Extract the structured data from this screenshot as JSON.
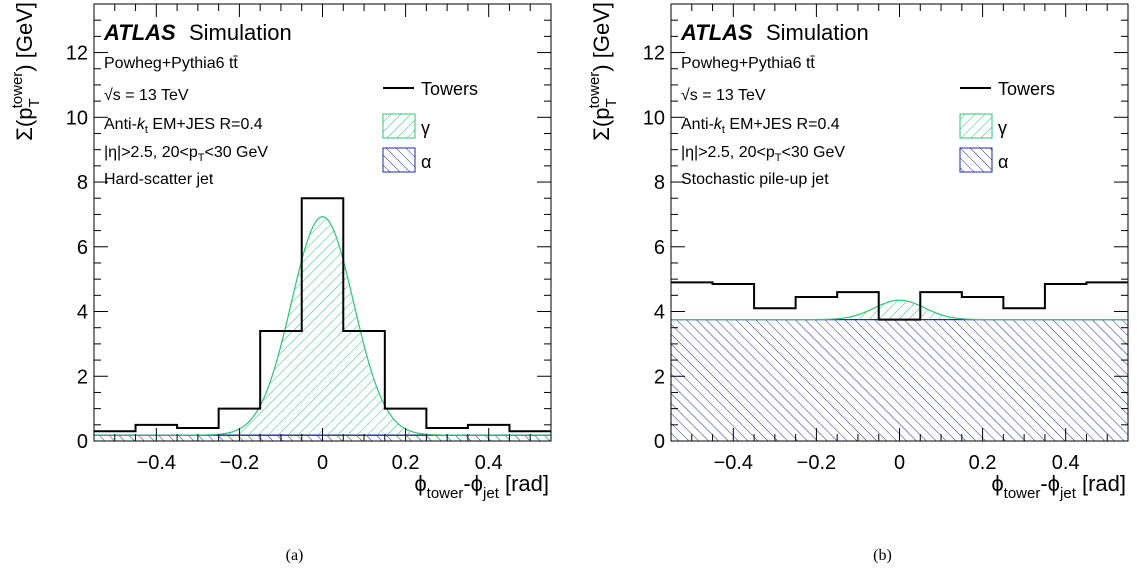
{
  "chart_data": [
    {
      "type": "histogram",
      "caption": "(a)",
      "experiment": "ATLAS",
      "status": "Simulation",
      "annotations": [
        "Powheg+Pythia6 tt̄",
        "√s = 13 TeV",
        "Anti-kt EM+JES R=0.4",
        "|η|>2.5, 20<pT<30 GeV",
        "Hard-scatter jet"
      ],
      "xlabel": "ϕtower-ϕjet [rad]",
      "ylabel": "Σ(pTtower) [GeV]",
      "xlim": [
        -0.55,
        0.55
      ],
      "ylim": [
        0,
        13.5
      ],
      "xticks": [
        -0.4,
        -0.2,
        0,
        0.2,
        0.4
      ],
      "yticks": [
        0,
        2,
        4,
        6,
        8,
        10,
        12
      ],
      "legend": [
        "Towers",
        "γ",
        "α"
      ],
      "towers": {
        "bin_edges": [
          -0.55,
          -0.45,
          -0.35,
          -0.25,
          -0.15,
          -0.05,
          0.05,
          0.15,
          0.25,
          0.35,
          0.45,
          0.55
        ],
        "values": [
          0.3,
          0.5,
          0.4,
          1.0,
          3.4,
          7.5,
          3.4,
          1.0,
          0.4,
          0.5,
          0.3
        ]
      },
      "alpha": 0.18,
      "gamma": {
        "amplitude": 6.75,
        "mean": 0.0,
        "sigma": 0.075
      }
    },
    {
      "type": "histogram",
      "caption": "(b)",
      "experiment": "ATLAS",
      "status": "Simulation",
      "annotations": [
        "Powheg+Pythia6 tt̄",
        "√s = 13 TeV",
        "Anti-kt EM+JES R=0.4",
        "|η|>2.5, 20<pT<30 GeV",
        "Stochastic pile-up jet"
      ],
      "xlabel": "ϕtower-ϕjet [rad]",
      "ylabel": "Σ(pTtower) [GeV]",
      "xlim": [
        -0.55,
        0.55
      ],
      "ylim": [
        0,
        13.5
      ],
      "xticks": [
        -0.4,
        -0.2,
        0,
        0.2,
        0.4
      ],
      "yticks": [
        0,
        2,
        4,
        6,
        8,
        10,
        12
      ],
      "legend": [
        "Towers",
        "γ",
        "α"
      ],
      "towers": {
        "bin_edges": [
          -0.55,
          -0.45,
          -0.35,
          -0.25,
          -0.15,
          -0.05,
          0.05,
          0.15,
          0.25,
          0.35,
          0.45,
          0.55
        ],
        "values": [
          4.9,
          4.85,
          4.1,
          4.45,
          4.6,
          3.75,
          4.6,
          4.45,
          4.1,
          4.85,
          4.9
        ]
      },
      "alpha": 3.75,
      "gamma": {
        "amplitude": 0.6,
        "mean": 0.0,
        "sigma": 0.06
      }
    }
  ],
  "colors": {
    "gamma": "#2fc47a",
    "alpha": "#1c2a9e",
    "towers": "#000000"
  }
}
